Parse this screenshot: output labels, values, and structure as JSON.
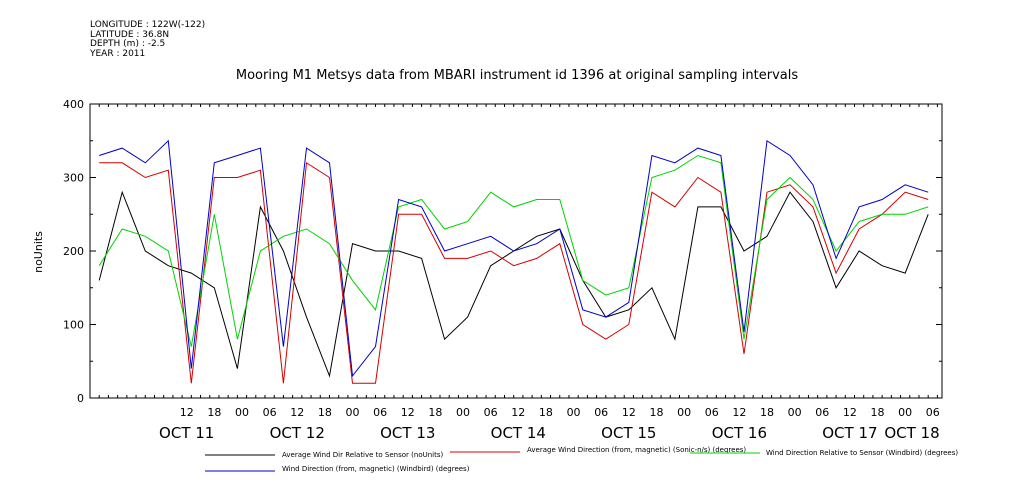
{
  "metadata": {
    "longitude": "LONGITUDE : 122W(-122)",
    "latitude": "LATITUDE : 36.8N",
    "depth": "DEPTH (m) : -2.5",
    "year": "YEAR : 2011"
  },
  "chart_data": {
    "type": "line",
    "title": "Mooring M1 Metsys data from MBARI instrument id 1396 at original sampling intervals",
    "ylabel": "noUnits",
    "xlabel": "",
    "ylim": [
      0,
      400
    ],
    "yticks": [
      "0",
      "100",
      "200",
      "300",
      "400"
    ],
    "hour_ticks": [
      "12",
      "18",
      "00",
      "06",
      "12",
      "18",
      "00",
      "06",
      "12",
      "18",
      "00",
      "06",
      "12",
      "18",
      "00",
      "06",
      "12",
      "18",
      "00",
      "06",
      "12",
      "18",
      "00",
      "06",
      "12",
      "18",
      "00",
      "06"
    ],
    "day_labels": [
      "OCT 11",
      "OCT 12",
      "OCT 13",
      "OCT 14",
      "OCT 15",
      "OCT 16",
      "OCT 17",
      "OCT 18"
    ],
    "xlim_hours_from_oct11_00": [
      -9,
      176
    ],
    "legend_position": "bottom",
    "series": [
      {
        "name": "Average Wind Dir Relative to Sensor (noUnits)",
        "color": "#000000",
        "x": [
          -7,
          -2,
          3,
          8,
          13,
          18,
          23,
          28,
          33,
          38,
          43,
          48,
          53,
          58,
          63,
          68,
          73,
          78,
          83,
          88,
          93,
          98,
          103,
          108,
          113,
          118,
          123,
          128,
          133,
          138,
          143,
          148,
          153,
          158,
          163,
          168,
          173
        ],
        "values": [
          160,
          280,
          200,
          180,
          170,
          150,
          40,
          260,
          200,
          110,
          30,
          210,
          200,
          200,
          190,
          80,
          110,
          180,
          200,
          220,
          230,
          160,
          110,
          120,
          150,
          80,
          260,
          260,
          200,
          220,
          280,
          240,
          150,
          200,
          180,
          170,
          250
        ]
      },
      {
        "name": "Average Wind Direction (from, magnetic) (Sonic-n/s) (degrees)",
        "color": "#d40000",
        "x": [
          -7,
          -2,
          3,
          8,
          13,
          18,
          23,
          28,
          33,
          38,
          43,
          48,
          53,
          58,
          63,
          68,
          73,
          78,
          83,
          88,
          93,
          98,
          103,
          108,
          113,
          118,
          123,
          128,
          133,
          138,
          143,
          148,
          153,
          158,
          163,
          168,
          173
        ],
        "values": [
          320,
          320,
          300,
          310,
          20,
          300,
          300,
          310,
          20,
          320,
          300,
          20,
          20,
          250,
          250,
          190,
          190,
          200,
          180,
          190,
          210,
          100,
          80,
          100,
          280,
          260,
          300,
          280,
          60,
          280,
          290,
          260,
          170,
          230,
          250,
          280,
          270
        ]
      },
      {
        "name": "Wind Direction Relative to Sensor (Windbird) (degrees)",
        "color": "#00d400",
        "x": [
          -7,
          -2,
          3,
          8,
          13,
          18,
          23,
          28,
          33,
          38,
          43,
          48,
          53,
          58,
          63,
          68,
          73,
          78,
          83,
          88,
          93,
          98,
          103,
          108,
          113,
          118,
          123,
          128,
          133,
          138,
          143,
          148,
          153,
          158,
          163,
          168,
          173
        ],
        "values": [
          180,
          230,
          220,
          200,
          70,
          250,
          80,
          200,
          220,
          230,
          210,
          160,
          120,
          260,
          270,
          230,
          240,
          280,
          260,
          270,
          270,
          160,
          140,
          150,
          300,
          310,
          330,
          320,
          80,
          270,
          300,
          270,
          200,
          240,
          250,
          250,
          260
        ]
      },
      {
        "name": "Wind Direction (from, magnetic) (Windbird) (degrees)",
        "color": "#0000c8",
        "x": [
          -7,
          -2,
          3,
          8,
          13,
          18,
          23,
          28,
          33,
          38,
          43,
          48,
          53,
          58,
          63,
          68,
          73,
          78,
          83,
          88,
          93,
          98,
          103,
          108,
          113,
          118,
          123,
          128,
          133,
          138,
          143,
          148,
          153,
          158,
          163,
          168,
          173
        ],
        "values": [
          330,
          340,
          320,
          350,
          40,
          320,
          330,
          340,
          70,
          340,
          320,
          30,
          70,
          270,
          260,
          200,
          210,
          220,
          200,
          210,
          230,
          120,
          110,
          130,
          330,
          320,
          340,
          330,
          90,
          350,
          330,
          290,
          190,
          260,
          270,
          290,
          280
        ]
      }
    ]
  }
}
